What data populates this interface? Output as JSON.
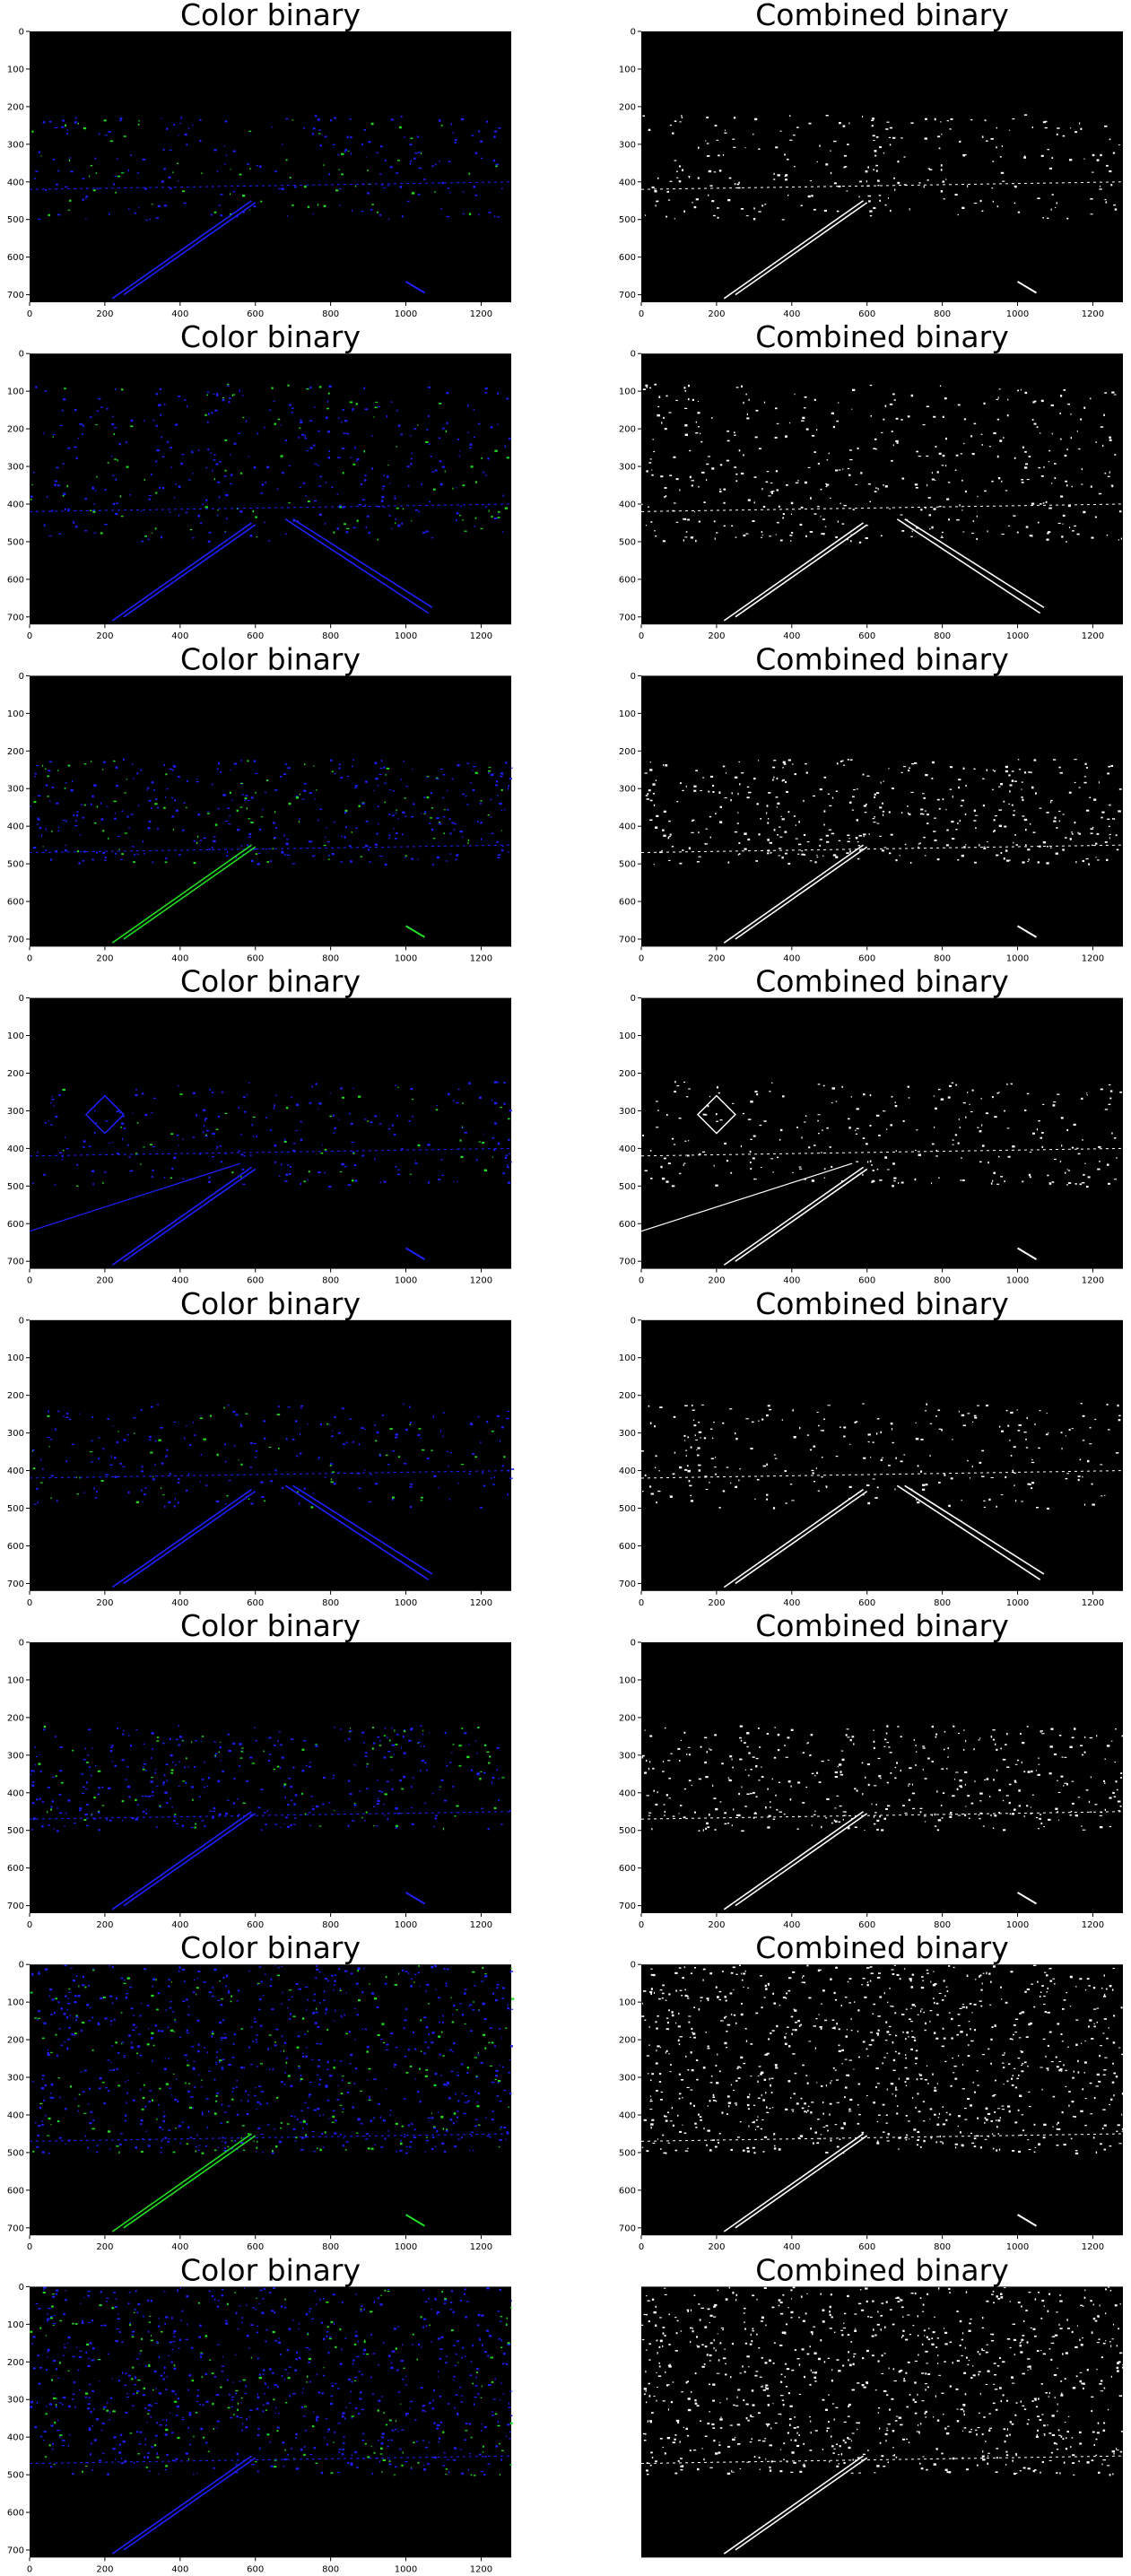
{
  "figure": {
    "panels": [
      {
        "row": 0,
        "col": 0,
        "title": "Color binary",
        "kind": "color",
        "variant": 0
      },
      {
        "row": 0,
        "col": 1,
        "title": "Combined binary",
        "kind": "combined",
        "variant": 0
      },
      {
        "row": 1,
        "col": 0,
        "title": "Color binary",
        "kind": "color",
        "variant": 1
      },
      {
        "row": 1,
        "col": 1,
        "title": "Combined binary",
        "kind": "combined",
        "variant": 1
      },
      {
        "row": 2,
        "col": 0,
        "title": "Color binary",
        "kind": "color",
        "variant": 2
      },
      {
        "row": 2,
        "col": 1,
        "title": "Combined binary",
        "kind": "combined",
        "variant": 2
      },
      {
        "row": 3,
        "col": 0,
        "title": "Color binary",
        "kind": "color",
        "variant": 3
      },
      {
        "row": 3,
        "col": 1,
        "title": "Combined binary",
        "kind": "combined",
        "variant": 3
      },
      {
        "row": 4,
        "col": 0,
        "title": "Color binary",
        "kind": "color",
        "variant": 4
      },
      {
        "row": 4,
        "col": 1,
        "title": "Combined binary",
        "kind": "combined",
        "variant": 4
      },
      {
        "row": 5,
        "col": 0,
        "title": "Color binary",
        "kind": "color",
        "variant": 5
      },
      {
        "row": 5,
        "col": 1,
        "title": "Combined binary",
        "kind": "combined",
        "variant": 5
      },
      {
        "row": 6,
        "col": 0,
        "title": "Color binary",
        "kind": "color",
        "variant": 6
      },
      {
        "row": 6,
        "col": 1,
        "title": "Combined binary",
        "kind": "combined",
        "variant": 6
      },
      {
        "row": 7,
        "col": 0,
        "title": "Color binary",
        "kind": "color",
        "variant": 7
      },
      {
        "row": 7,
        "col": 1,
        "title": "Combined binary",
        "kind": "combined",
        "variant": 7
      }
    ],
    "last_panel_axes_hidden": true,
    "axes": {
      "x_ticks": [
        "0",
        "200",
        "400",
        "600",
        "800",
        "1000",
        "1200"
      ],
      "y_ticks": [
        "0",
        "100",
        "200",
        "300",
        "400",
        "500",
        "600",
        "700"
      ]
    },
    "colors": {
      "background": "#000000",
      "color_blue": "#2020ff",
      "color_green": "#22dd22",
      "combined": "#ffffff"
    }
  }
}
